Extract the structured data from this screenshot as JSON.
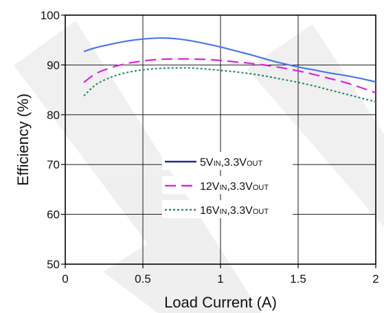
{
  "chart_data": {
    "type": "line",
    "xlabel": "Load Current (A)",
    "ylabel": "Efficiency (%)",
    "xlim": [
      0,
      2
    ],
    "ylim": [
      50,
      100
    ],
    "x_ticks": [
      "0",
      "0.5",
      "1",
      "1.5",
      "2"
    ],
    "y_ticks": [
      "50",
      "60",
      "70",
      "80",
      "90",
      "100"
    ],
    "grid": true,
    "legend_position": "center",
    "series": [
      {
        "name": "5V_IN,3.3V_OUT",
        "legend_main": "5V",
        "legend_sub1": "IN",
        "legend_mid": ",3.3V",
        "legend_sub2": "OUT",
        "line_style": "solid",
        "line_color": "#4a77e8",
        "legend_color": "#1c2c8c",
        "x": [
          0.12,
          0.2,
          0.3,
          0.4,
          0.5,
          0.6,
          0.7,
          0.8,
          0.9,
          1.0,
          1.1,
          1.2,
          1.3,
          1.4,
          1.5,
          1.6,
          1.7,
          1.8,
          1.9,
          2.0
        ],
        "y": [
          92.7,
          93.5,
          94.2,
          94.8,
          95.2,
          95.4,
          95.3,
          94.9,
          94.3,
          93.6,
          92.8,
          92.0,
          91.1,
          90.3,
          89.6,
          89.0,
          88.4,
          87.9,
          87.3,
          86.6
        ]
      },
      {
        "name": "12V_IN,3.3V_OUT",
        "legend_main": "12V",
        "legend_sub1": "IN",
        "legend_mid": ",3.3V",
        "legend_sub2": "OUT",
        "line_style": "dashed",
        "line_color": "#e020e0",
        "legend_color": "#e020e0",
        "x": [
          0.12,
          0.2,
          0.3,
          0.4,
          0.5,
          0.6,
          0.7,
          0.8,
          0.9,
          1.0,
          1.1,
          1.2,
          1.3,
          1.4,
          1.5,
          1.6,
          1.7,
          1.8,
          1.9,
          2.0
        ],
        "y": [
          86.5,
          88.3,
          89.5,
          90.3,
          90.8,
          91.1,
          91.2,
          91.2,
          91.1,
          90.9,
          90.6,
          90.3,
          89.9,
          89.4,
          88.8,
          88.1,
          87.3,
          86.5,
          85.5,
          84.4
        ]
      },
      {
        "name": "16V_IN,3.3V_OUT",
        "legend_main": "16V",
        "legend_sub1": "IN",
        "legend_mid": ",3.3V",
        "legend_sub2": "OUT",
        "line_style": "dotted",
        "line_color": "#2e8b68",
        "legend_color": "#2e8b68",
        "x": [
          0.12,
          0.2,
          0.3,
          0.4,
          0.5,
          0.6,
          0.7,
          0.8,
          0.9,
          1.0,
          1.1,
          1.2,
          1.3,
          1.4,
          1.5,
          1.6,
          1.7,
          1.8,
          1.9,
          2.0
        ],
        "y": [
          83.8,
          86.1,
          87.6,
          88.5,
          89.0,
          89.3,
          89.4,
          89.4,
          89.2,
          88.9,
          88.6,
          88.2,
          87.7,
          87.1,
          86.5,
          85.8,
          85.0,
          84.2,
          83.4,
          82.6
        ]
      }
    ]
  }
}
